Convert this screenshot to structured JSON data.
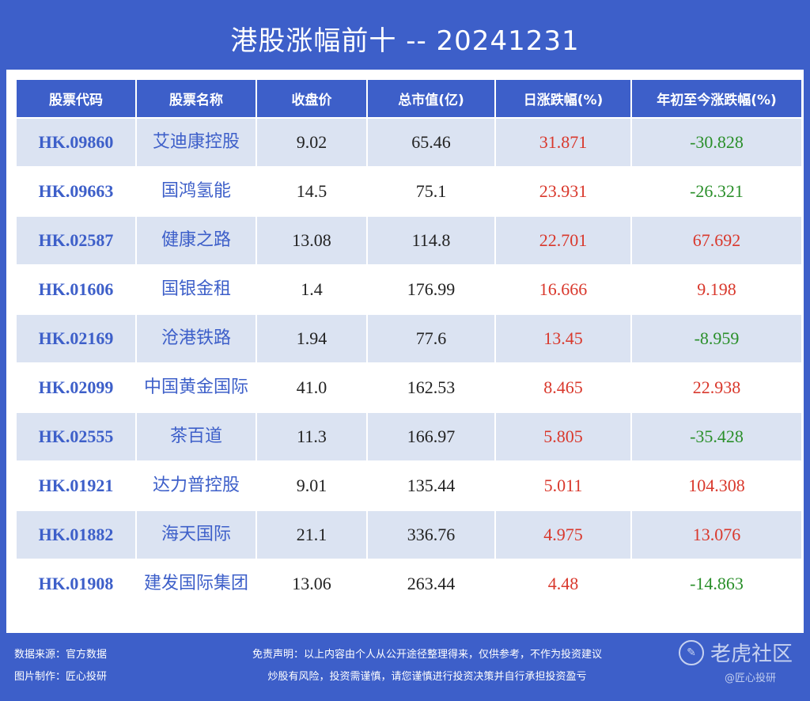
{
  "title": "港股涨幅前十 -- 20241231",
  "headers": [
    "股票代码",
    "股票名称",
    "收盘价",
    "总市值(亿)",
    "日涨跌幅(%)",
    "年初至今涨跌幅(%)"
  ],
  "rows": [
    {
      "code": "HK.09860",
      "name": "艾迪康控股",
      "close": "9.02",
      "mcap": "65.46",
      "day": "31.871",
      "ytd": "-30.828"
    },
    {
      "code": "HK.09663",
      "name": "国鸿氢能",
      "close": "14.5",
      "mcap": "75.1",
      "day": "23.931",
      "ytd": "-26.321"
    },
    {
      "code": "HK.02587",
      "name": "健康之路",
      "close": "13.08",
      "mcap": "114.8",
      "day": "22.701",
      "ytd": "67.692"
    },
    {
      "code": "HK.01606",
      "name": "国银金租",
      "close": "1.4",
      "mcap": "176.99",
      "day": "16.666",
      "ytd": "9.198"
    },
    {
      "code": "HK.02169",
      "name": "沧港铁路",
      "close": "1.94",
      "mcap": "77.6",
      "day": "13.45",
      "ytd": "-8.959"
    },
    {
      "code": "HK.02099",
      "name": "中国黄金国际",
      "close": "41.0",
      "mcap": "162.53",
      "day": "8.465",
      "ytd": "22.938"
    },
    {
      "code": "HK.02555",
      "name": "茶百道",
      "close": "11.3",
      "mcap": "166.97",
      "day": "5.805",
      "ytd": "-35.428"
    },
    {
      "code": "HK.01921",
      "name": "达力普控股",
      "close": "9.01",
      "mcap": "135.44",
      "day": "5.011",
      "ytd": "104.308"
    },
    {
      "code": "HK.01882",
      "name": "海天国际",
      "close": "21.1",
      "mcap": "336.76",
      "day": "4.975",
      "ytd": "13.076"
    },
    {
      "code": "HK.01908",
      "name": "建发国际集团",
      "close": "13.06",
      "mcap": "263.44",
      "day": "4.48",
      "ytd": "-14.863"
    }
  ],
  "footer": {
    "source": "数据来源：官方数据",
    "maker": "图片制作：匠心投研",
    "disclaimer1": "免责声明：以上内容由个人从公开途径整理得来，仅供参考，不作为投资建议",
    "disclaimer2": "炒股有风险，投资需谨慎，请您谨慎进行投资决策并自行承担投资盈亏"
  },
  "watermark": {
    "brand": "老虎社区",
    "sub": "@匠心投研"
  },
  "colors": {
    "up": "#d9382c",
    "down": "#2a8f2a",
    "accent": "#3d5fc9"
  }
}
